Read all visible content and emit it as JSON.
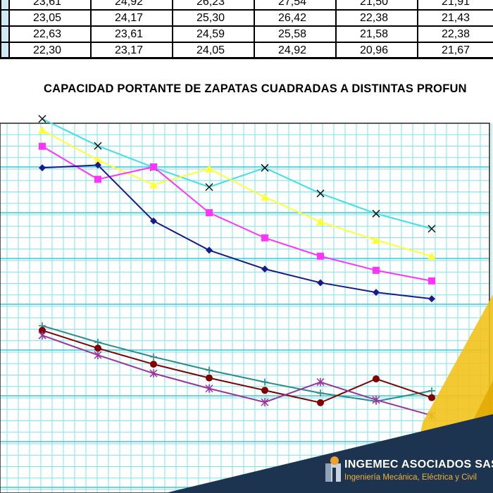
{
  "table": {
    "rows": [
      [
        "23,61",
        "24,92",
        "26,23",
        "27,54",
        "21,50",
        "21,91"
      ],
      [
        "23,05",
        "24,17",
        "25,30",
        "26,42",
        "22,38",
        "21,43"
      ],
      [
        "22,63",
        "23,61",
        "24,59",
        "25,58",
        "21,58",
        "22,38"
      ],
      [
        "22,30",
        "23,17",
        "24,05",
        "24,92",
        "20,96",
        "21,67"
      ]
    ]
  },
  "chart_data": {
    "type": "line",
    "title": "CAPACIDAD PORTANTE DE ZAPATAS CUADRADAS A DISTINTAS PROFUN",
    "x": [
      1,
      2,
      3,
      4,
      5,
      6,
      7,
      8
    ],
    "grid": true,
    "series": [
      {
        "color": "#40e0e8",
        "marker": "x",
        "values": [
          13.05,
          12.46,
          11.99,
          11.56,
          11.98,
          11.42,
          10.98,
          10.65
        ]
      },
      {
        "color": "#ffff33",
        "marker": "triangle",
        "values": [
          12.8,
          12.15,
          11.61,
          11.96,
          11.34,
          10.8,
          10.4,
          10.05
        ]
      },
      {
        "color": "#ff33ff",
        "marker": "square",
        "values": [
          12.45,
          11.73,
          12.0,
          11.0,
          10.45,
          10.05,
          9.74,
          9.51
        ]
      },
      {
        "color": "#1a1a8c",
        "marker": "diamond",
        "values": [
          11.98,
          12.04,
          10.82,
          10.18,
          9.77,
          9.47,
          9.26,
          9.12
        ]
      },
      {
        "color": "#2e8b8b",
        "marker": "plus",
        "values": [
          8.53,
          8.17,
          7.85,
          7.56,
          7.3,
          7.06,
          6.88,
          7.11
        ]
      },
      {
        "color": "#800000",
        "marker": "circle",
        "values": [
          8.43,
          8.04,
          7.69,
          7.39,
          7.12,
          6.85,
          7.37,
          6.96
        ]
      },
      {
        "color": "#9933a0",
        "marker": "asterisk",
        "values": [
          8.32,
          7.89,
          7.49,
          7.16,
          6.86,
          7.3,
          6.91,
          6.57
        ]
      }
    ]
  },
  "footer": {
    "company": "INGEMEC ASOCIADOS SAS",
    "tagline": "Ingeniería Mecánica, Eléctrica y Civil"
  }
}
